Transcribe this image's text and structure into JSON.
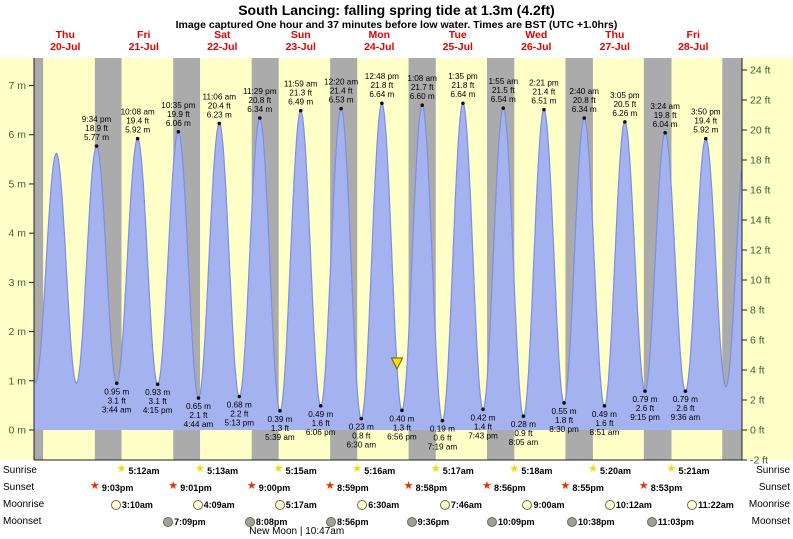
{
  "title": "South Lancing: falling  spring tide at 1.3m (4.2ft)",
  "subtitle": "Image captured One hour and 37 minutes before low water. Times are BST (UTC +1.0hrs)",
  "days": [
    {
      "dow": "Thu",
      "date": "20-Jul"
    },
    {
      "dow": "Fri",
      "date": "21-Jul"
    },
    {
      "dow": "Sat",
      "date": "22-Jul"
    },
    {
      "dow": "Sun",
      "date": "23-Jul"
    },
    {
      "dow": "Mon",
      "date": "24-Jul"
    },
    {
      "dow": "Tue",
      "date": "25-Jul"
    },
    {
      "dow": "Wed",
      "date": "26-Jul"
    },
    {
      "dow": "Thu",
      "date": "27-Jul"
    },
    {
      "dow": "Fri",
      "date": "28-Jul"
    }
  ],
  "chart_data": {
    "type": "area",
    "title": "Tide height curve for South Lancing, Thu 20-Jul to Fri 28-Jul",
    "x_unit": "days from Thu 20-Jul 00:00",
    "y_left": {
      "unit": "m",
      "ticks": [
        {
          "label": "7 m",
          "value": 7
        },
        {
          "label": "6 m",
          "value": 6
        },
        {
          "label": "5 m",
          "value": 5
        },
        {
          "label": "4 m",
          "value": 4
        },
        {
          "label": "3 m",
          "value": 3
        },
        {
          "label": "2 m",
          "value": 2
        },
        {
          "label": "1 m",
          "value": 1
        },
        {
          "label": "0 m",
          "value": 0
        }
      ]
    },
    "y_right": {
      "unit": "ft",
      "ticks": [
        {
          "label": "24 ft",
          "value": 24
        },
        {
          "label": "22 ft",
          "value": 22
        },
        {
          "label": "20 ft",
          "value": 20
        },
        {
          "label": "18 ft",
          "value": 18
        },
        {
          "label": "16 ft",
          "value": 16
        },
        {
          "label": "14 ft",
          "value": 14
        },
        {
          "label": "12 ft",
          "value": 12
        },
        {
          "label": "10 ft",
          "value": 10
        },
        {
          "label": "8 ft",
          "value": 8
        },
        {
          "label": "6 ft",
          "value": 6
        },
        {
          "label": "4 ft",
          "value": 4
        },
        {
          "label": "2 ft",
          "value": 2
        },
        {
          "label": "0 ft",
          "value": 0
        },
        {
          "label": "-2 ft",
          "value": -2
        }
      ]
    },
    "extremes": [
      {
        "kind": "high",
        "t": -0.137,
        "h": 5.6
      },
      {
        "kind": "low",
        "t": 0.121,
        "h": 0.97
      },
      {
        "kind": "high",
        "t": 0.386,
        "h": 5.62
      },
      {
        "kind": "low",
        "t": 0.642,
        "h": 0.95
      },
      {
        "kind": "high",
        "t": 0.8986,
        "h": 5.77,
        "time": "9:34 pm",
        "ft": "18.9 ft",
        "m": "5.77 m"
      },
      {
        "kind": "low",
        "t": 1.1556,
        "h": 0.95,
        "time": "3:44 am",
        "ft": "3.1 ft",
        "m": "0.95 m"
      },
      {
        "kind": "high",
        "t": 1.4222,
        "h": 5.92,
        "time": "10:08 am",
        "ft": "19.4 ft",
        "m": "5.92 m"
      },
      {
        "kind": "low",
        "t": 1.6771,
        "h": 0.93,
        "time": "4:15 pm",
        "ft": "3.1 ft",
        "m": "0.93 m"
      },
      {
        "kind": "high",
        "t": 1.941,
        "h": 6.06,
        "time": "10:35 pm",
        "ft": "19.9 ft",
        "m": "6.06 m"
      },
      {
        "kind": "low",
        "t": 2.1972,
        "h": 0.65,
        "time": "4:44 am",
        "ft": "2.1 ft",
        "m": "0.65 m"
      },
      {
        "kind": "high",
        "t": 2.4625,
        "h": 6.23,
        "time": "11:06 am",
        "ft": "20.4 ft",
        "m": "6.23 m"
      },
      {
        "kind": "low",
        "t": 2.7174,
        "h": 0.68,
        "time": "5:13 pm",
        "ft": "2.2 ft",
        "m": "0.68 m"
      },
      {
        "kind": "high",
        "t": 2.9785,
        "h": 6.34,
        "time": "11:29 pm",
        "ft": "20.8 ft",
        "m": "6.34 m"
      },
      {
        "kind": "low",
        "t": 3.2354,
        "h": 0.39,
        "time": "5:39 am",
        "ft": "1.3 ft",
        "m": "0.39 m"
      },
      {
        "kind": "high",
        "t": 3.4993,
        "h": 6.49,
        "time": "11:59 am",
        "ft": "21.3 ft",
        "m": "6.49 m"
      },
      {
        "kind": "low",
        "t": 3.7542,
        "h": 0.49,
        "time": "6:06 pm",
        "ft": "1.6 ft",
        "m": "0.49 m"
      },
      {
        "kind": "high",
        "t": 4.0139,
        "h": 6.53,
        "time": "12:20 am",
        "ft": "21.4 ft",
        "m": "6.53 m"
      },
      {
        "kind": "low",
        "t": 4.2708,
        "h": 0.23,
        "time": "6:30 am",
        "ft": "0.8 ft",
        "m": "0.23 m"
      },
      {
        "kind": "high",
        "t": 4.5333,
        "h": 6.64,
        "time": "12:48 pm",
        "ft": "21.8 ft",
        "m": "6.64 m"
      },
      {
        "kind": "low",
        "t": 4.7889,
        "h": 0.4,
        "time": "6:56 pm",
        "ft": "1.3 ft",
        "m": "0.40 m"
      },
      {
        "kind": "high",
        "t": 5.0472,
        "h": 6.6,
        "time": "1:08 am",
        "ft": "21.7 ft",
        "m": "6.60 m"
      },
      {
        "kind": "low",
        "t": 5.3049,
        "h": 0.19,
        "time": "7:19 am",
        "ft": "0.6 ft",
        "m": "0.19 m"
      },
      {
        "kind": "high",
        "t": 5.566,
        "h": 6.64,
        "time": "1:35 pm",
        "ft": "21.8 ft",
        "m": "6.64 m"
      },
      {
        "kind": "low",
        "t": 5.8215,
        "h": 0.42,
        "time": "7:43 pm",
        "ft": "1.4 ft",
        "m": "0.42 m"
      },
      {
        "kind": "high",
        "t": 6.0799,
        "h": 6.54,
        "time": "1:55 am",
        "ft": "21.5 ft",
        "m": "6.54 m"
      },
      {
        "kind": "low",
        "t": 6.3368,
        "h": 0.28,
        "time": "8:05 am",
        "ft": "0.9 ft",
        "m": "0.28 m"
      },
      {
        "kind": "high",
        "t": 6.5979,
        "h": 6.51,
        "time": "2:21 pm",
        "ft": "21.4 ft",
        "m": "6.51 m"
      },
      {
        "kind": "low",
        "t": 6.8542,
        "h": 0.55,
        "time": "8:30 pm",
        "ft": "1.8 ft",
        "m": "0.55 m"
      },
      {
        "kind": "high",
        "t": 7.1111,
        "h": 6.34,
        "time": "2:40 am",
        "ft": "20.8 ft",
        "m": "6.34 m"
      },
      {
        "kind": "low",
        "t": 7.3688,
        "h": 0.49,
        "time": "8:51 am",
        "ft": "1.6 ft",
        "m": "0.49 m"
      },
      {
        "kind": "high",
        "t": 7.6285,
        "h": 6.26,
        "time": "3:05 pm",
        "ft": "20.5 ft",
        "m": "6.26 m"
      },
      {
        "kind": "low",
        "t": 7.8854,
        "h": 0.79,
        "time": "9:15 pm",
        "ft": "2.6 ft",
        "m": "0.79 m"
      },
      {
        "kind": "high",
        "t": 8.1417,
        "h": 6.04,
        "time": "3:24 am",
        "ft": "19.8 ft",
        "m": "6.04 m"
      },
      {
        "kind": "low",
        "t": 8.4,
        "h": 0.79,
        "time": "9:36 am",
        "ft": "2.6 ft",
        "m": "0.79 m"
      },
      {
        "kind": "high",
        "t": 8.6597,
        "h": 5.92,
        "time": "3:50 pm",
        "ft": "19.4 ft",
        "m": "5.92 m"
      },
      {
        "kind": "low",
        "t": 8.916,
        "h": 0.88
      },
      {
        "kind": "high",
        "t": 9.17,
        "h": 5.85
      }
    ],
    "night_bands": [
      {
        "from": -0.123,
        "to": 0.218
      },
      {
        "from": 0.8771,
        "to": 1.2167
      },
      {
        "from": 1.8757,
        "to": 2.2174
      },
      {
        "from": 2.875,
        "to": 3.2188
      },
      {
        "from": 3.8743,
        "to": 4.2194
      },
      {
        "from": 4.8736,
        "to": 5.2201
      },
      {
        "from": 5.8722,
        "to": 6.2208
      },
      {
        "from": 6.8715,
        "to": 7.2222
      },
      {
        "from": 7.8701,
        "to": 8.2229
      },
      {
        "from": 8.8694,
        "to": 9.4
      }
    ],
    "current_marker": {
      "t": 4.7258,
      "height_m": 1.3,
      "description": "falling tide at 1.3m (4.2ft)"
    },
    "colors": {
      "day_bg": "#ffffc8",
      "night_band": "#ababab",
      "tide_fill": "#a4b2f0",
      "tide_stroke": "#7d8fe0",
      "axis_text": "#336633",
      "axis_line": "#222222",
      "day_label": "#e80000",
      "marker_fill": "#ffdf00",
      "marker_stroke": "#6b5b00"
    }
  },
  "astro": {
    "rows": [
      {
        "key": "sunrise",
        "label": "Sunrise",
        "icon": "sunrise-star-icon",
        "shape": "star",
        "color": "#ffd400",
        "entries": [
          {
            "time": "5:12am",
            "t": 1.2167
          },
          {
            "time": "5:13am",
            "t": 2.2174
          },
          {
            "time": "5:15am",
            "t": 3.2188
          },
          {
            "time": "5:16am",
            "t": 4.2194
          },
          {
            "time": "5:17am",
            "t": 5.2201
          },
          {
            "time": "5:18am",
            "t": 6.2208
          },
          {
            "time": "5:20am",
            "t": 7.2222
          },
          {
            "time": "5:21am",
            "t": 8.2229
          }
        ]
      },
      {
        "key": "sunset",
        "label": "Sunset",
        "icon": "sunset-star-icon",
        "shape": "star",
        "color": "#e83000",
        "entries": [
          {
            "time": "9:03pm",
            "t": 0.8771
          },
          {
            "time": "9:01pm",
            "t": 1.8757
          },
          {
            "time": "9:00pm",
            "t": 2.875
          },
          {
            "time": "8:59pm",
            "t": 3.8743
          },
          {
            "time": "8:58pm",
            "t": 4.8736
          },
          {
            "time": "8:56pm",
            "t": 5.8722
          },
          {
            "time": "8:55pm",
            "t": 6.8715
          },
          {
            "time": "8:53pm",
            "t": 7.8701
          }
        ]
      },
      {
        "key": "moonrise",
        "label": "Moonrise",
        "icon": "moonrise-icon",
        "shape": "circle",
        "color": "#ffffd2",
        "entries": [
          {
            "time": "3:10am",
            "t": 1.1319
          },
          {
            "time": "4:09am",
            "t": 2.1729
          },
          {
            "time": "5:17am",
            "t": 3.2201
          },
          {
            "time": "6:30am",
            "t": 4.2708
          },
          {
            "time": "7:46am",
            "t": 5.3236
          },
          {
            "time": "9:00am",
            "t": 6.375
          },
          {
            "time": "10:12am",
            "t": 7.425
          },
          {
            "time": "11:22am",
            "t": 8.4736
          }
        ]
      },
      {
        "key": "moonset",
        "label": "Moonset",
        "icon": "moonset-icon",
        "shape": "circle",
        "color": "#a0a0a0",
        "entries": [
          {
            "time": "7:09pm",
            "t": 1.7979
          },
          {
            "time": "8:08pm",
            "t": 2.8389
          },
          {
            "time": "8:56pm",
            "t": 3.8722
          },
          {
            "time": "9:36pm",
            "t": 4.9
          },
          {
            "time": "10:09pm",
            "t": 5.9229
          },
          {
            "time": "10:38pm",
            "t": 6.9431
          },
          {
            "time": "11:03pm",
            "t": 7.9604
          }
        ]
      }
    ],
    "new_moon": {
      "label": "New Moon | 10:47am",
      "t": 3.449
    }
  }
}
